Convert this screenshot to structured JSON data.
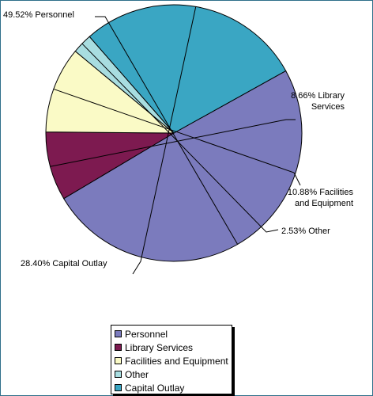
{
  "chart_data": {
    "type": "pie",
    "slices": [
      {
        "name": "Personnel",
        "value": 49.52,
        "color": "#7b7bbd",
        "label": "49.52% Personnel"
      },
      {
        "name": "Library Services",
        "value": 8.66,
        "color": "#7d1a50",
        "label": "8.66% Library\nServices"
      },
      {
        "name": "Facilities and Equipment",
        "value": 10.88,
        "color": "#fafac6",
        "label": "10.88% Facilities\nand Equipment"
      },
      {
        "name": "Other",
        "value": 2.53,
        "color": "#a8dde0",
        "label": "2.53% Other"
      },
      {
        "name": "Capital Outlay",
        "value": 28.4,
        "color": "#3aa6c3",
        "label": "28.40%  Capital Outlay"
      }
    ],
    "legend_position": "bottom-center"
  }
}
